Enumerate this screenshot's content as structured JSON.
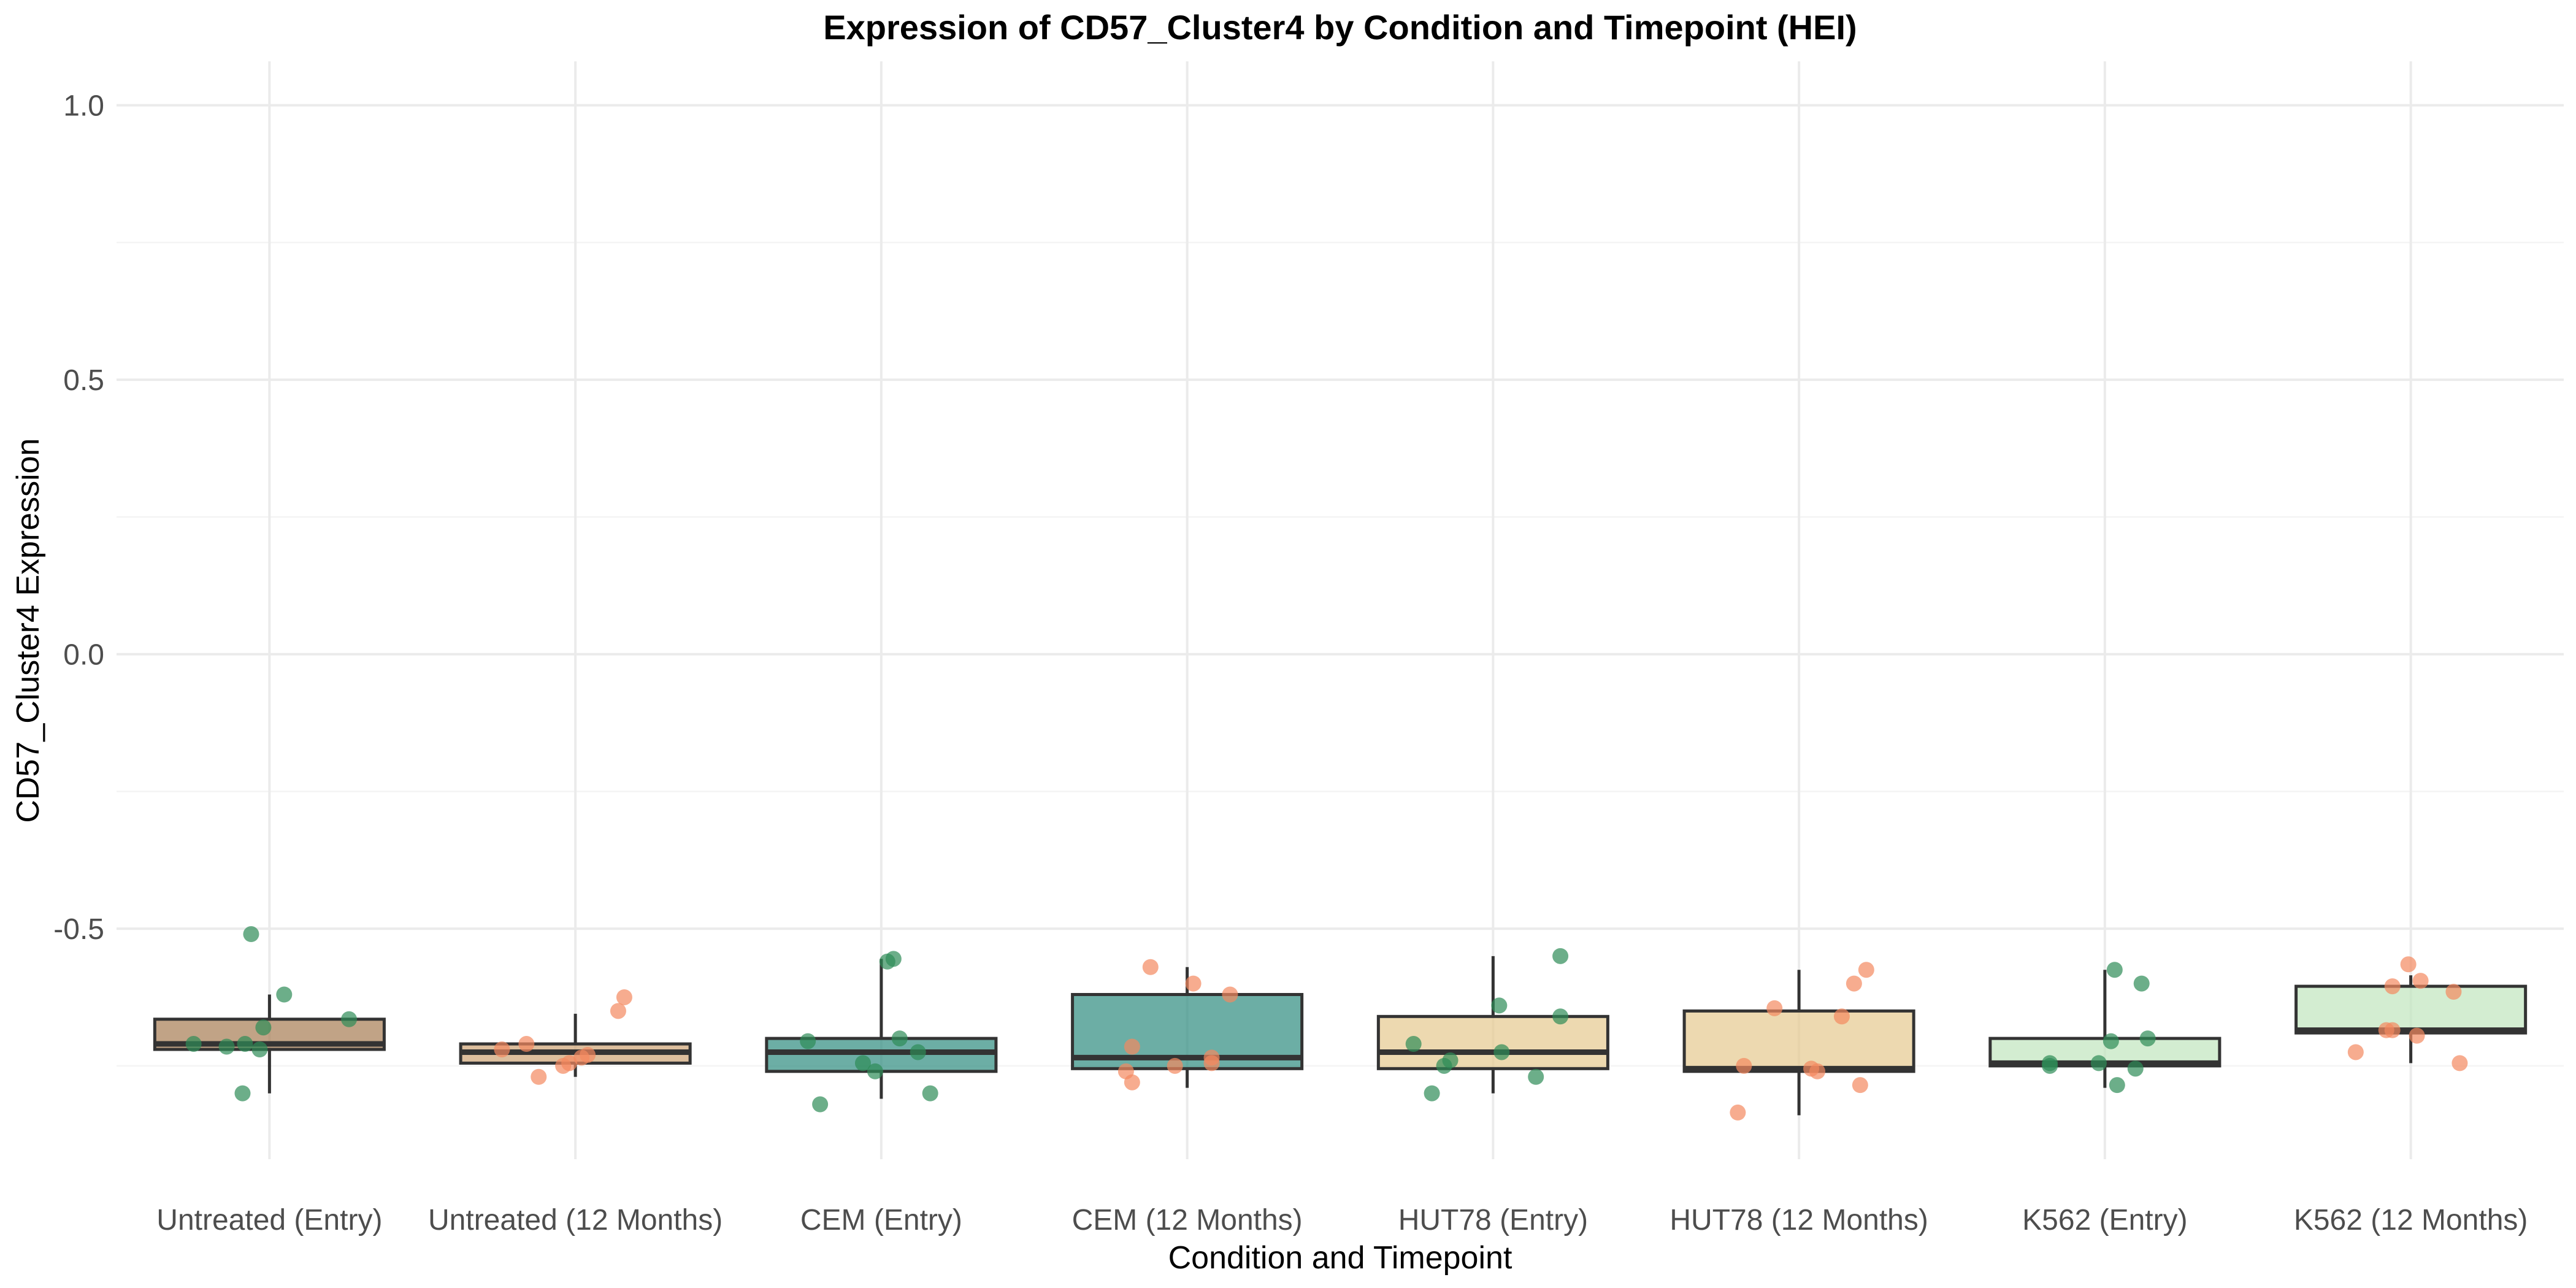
{
  "chart_data": {
    "type": "box",
    "title": "Expression of CD57_Cluster4 by Condition and Timepoint (HEI)",
    "xlabel": "Condition and Timepoint",
    "ylabel": "CD57_Cluster4 Expression",
    "ylim": [
      -0.92,
      1.08
    ],
    "yticks": [
      -0.5,
      0.0,
      0.5,
      1.0
    ],
    "ytick_labels": [
      "-0.5",
      "0.0",
      "0.5",
      "1.0"
    ],
    "grid": true,
    "categories": [
      "Untreated (Entry)",
      "Untreated (12 Months)",
      "CEM (Entry)",
      "CEM (12 Months)",
      "HUT78 (Entry)",
      "HUT78 (12 Months)",
      "K562 (Entry)",
      "K562 (12 Months)"
    ],
    "boxes": [
      {
        "category": "Untreated (Entry)",
        "fill": "#a67c52",
        "point_color": "#2e8b57",
        "whisker_low": -0.8,
        "q1": -0.72,
        "median": -0.71,
        "q3": -0.665,
        "whisker_high": -0.62,
        "points": [
          -0.51,
          -0.62,
          -0.665,
          -0.68,
          -0.71,
          -0.71,
          -0.715,
          -0.72,
          -0.8
        ],
        "jitter": [
          -0.15,
          0.12,
          0.65,
          -0.05,
          -0.62,
          -0.2,
          -0.35,
          -0.08,
          -0.22
        ]
      },
      {
        "category": "Untreated (12 Months)",
        "fill": "#cda274",
        "point_color": "#f4895f",
        "whisker_low": -0.77,
        "q1": -0.745,
        "median": -0.725,
        "q3": -0.71,
        "whisker_high": -0.655,
        "points": [
          -0.625,
          -0.65,
          -0.71,
          -0.72,
          -0.73,
          -0.735,
          -0.745,
          -0.75,
          -0.77
        ],
        "jitter": [
          0.4,
          0.35,
          -0.4,
          -0.6,
          0.1,
          0.05,
          -0.05,
          -0.1,
          -0.3
        ]
      },
      {
        "category": "CEM (Entry)",
        "fill": "#2e8b7f",
        "point_color": "#2e8b57",
        "whisker_low": -0.81,
        "q1": -0.76,
        "median": -0.725,
        "q3": -0.7,
        "whisker_high": -0.555,
        "points": [
          -0.555,
          -0.56,
          -0.7,
          -0.705,
          -0.725,
          -0.745,
          -0.76,
          -0.8,
          -0.82
        ],
        "jitter": [
          0.1,
          0.05,
          0.15,
          -0.6,
          0.3,
          -0.15,
          -0.05,
          0.4,
          -0.5
        ]
      },
      {
        "category": "CEM (12 Months)",
        "fill": "#2e8b7f",
        "point_color": "#f4895f",
        "whisker_low": -0.79,
        "q1": -0.755,
        "median": -0.735,
        "q3": -0.62,
        "whisker_high": -0.57,
        "points": [
          -0.57,
          -0.6,
          -0.62,
          -0.715,
          -0.735,
          -0.745,
          -0.75,
          -0.76,
          -0.78
        ],
        "jitter": [
          -0.3,
          0.05,
          0.35,
          -0.45,
          0.2,
          0.2,
          -0.1,
          -0.5,
          -0.45
        ]
      },
      {
        "category": "HUT78 (Entry)",
        "fill": "#e6c98f",
        "point_color": "#2e8b57",
        "whisker_low": -0.8,
        "q1": -0.755,
        "median": -0.725,
        "q3": -0.66,
        "whisker_high": -0.55,
        "points": [
          -0.55,
          -0.64,
          -0.66,
          -0.71,
          -0.725,
          -0.74,
          -0.75,
          -0.77,
          -0.8
        ],
        "jitter": [
          0.55,
          0.05,
          0.55,
          -0.65,
          0.07,
          -0.35,
          -0.4,
          0.35,
          -0.5
        ]
      },
      {
        "category": "HUT78 (12 Months)",
        "fill": "#e6c98f",
        "point_color": "#f4895f",
        "whisker_low": -0.84,
        "q1": -0.76,
        "median": -0.755,
        "q3": -0.65,
        "whisker_high": -0.575,
        "points": [
          -0.575,
          -0.6,
          -0.645,
          -0.66,
          -0.75,
          -0.755,
          -0.76,
          -0.785,
          -0.835
        ],
        "jitter": [
          0.55,
          0.45,
          -0.2,
          0.35,
          -0.45,
          0.1,
          0.15,
          0.5,
          -0.5
        ]
      },
      {
        "category": "K562 (Entry)",
        "fill": "#c0e6bd",
        "point_color": "#2e8b57",
        "whisker_low": -0.79,
        "q1": -0.75,
        "median": -0.745,
        "q3": -0.7,
        "whisker_high": -0.575,
        "points": [
          -0.575,
          -0.6,
          -0.7,
          -0.705,
          -0.745,
          -0.745,
          -0.75,
          -0.755,
          -0.785
        ],
        "jitter": [
          0.08,
          0.3,
          0.35,
          0.05,
          -0.45,
          -0.05,
          -0.45,
          0.25,
          0.1
        ]
      },
      {
        "category": "K562 (12 Months)",
        "fill": "#c0e6bd",
        "point_color": "#f4895f",
        "whisker_low": -0.745,
        "q1": -0.69,
        "median": -0.685,
        "q3": -0.605,
        "whisker_high": -0.585,
        "points": [
          -0.565,
          -0.595,
          -0.605,
          -0.615,
          -0.685,
          -0.685,
          -0.695,
          -0.725,
          -0.745
        ],
        "jitter": [
          -0.02,
          0.08,
          -0.15,
          0.35,
          -0.15,
          -0.2,
          0.05,
          -0.45,
          0.4
        ]
      }
    ]
  }
}
